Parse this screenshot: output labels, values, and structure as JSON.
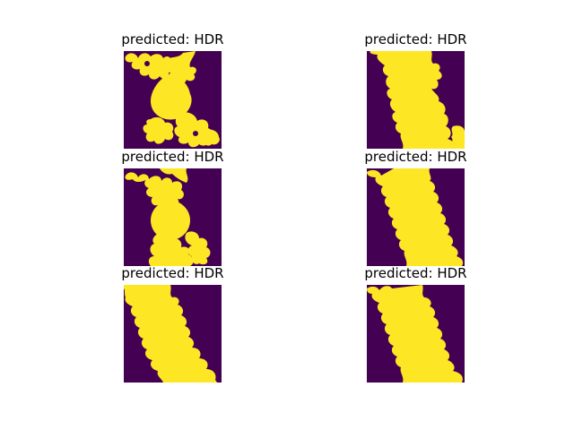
{
  "colors": {
    "background": "#440154",
    "foreground": "#fde725"
  },
  "panels": [
    {
      "title": "predicted: HDR",
      "icon": "julia-fractal-image"
    },
    {
      "title": "predicted: HDR",
      "icon": "julia-fractal-image"
    },
    {
      "title": "predicted: HDR",
      "icon": "julia-fractal-image"
    },
    {
      "title": "predicted: HDR",
      "icon": "julia-fractal-image"
    },
    {
      "title": "predicted: HDR",
      "icon": "julia-fractal-image"
    },
    {
      "title": "predicted: HDR",
      "icon": "julia-fractal-image"
    }
  ]
}
